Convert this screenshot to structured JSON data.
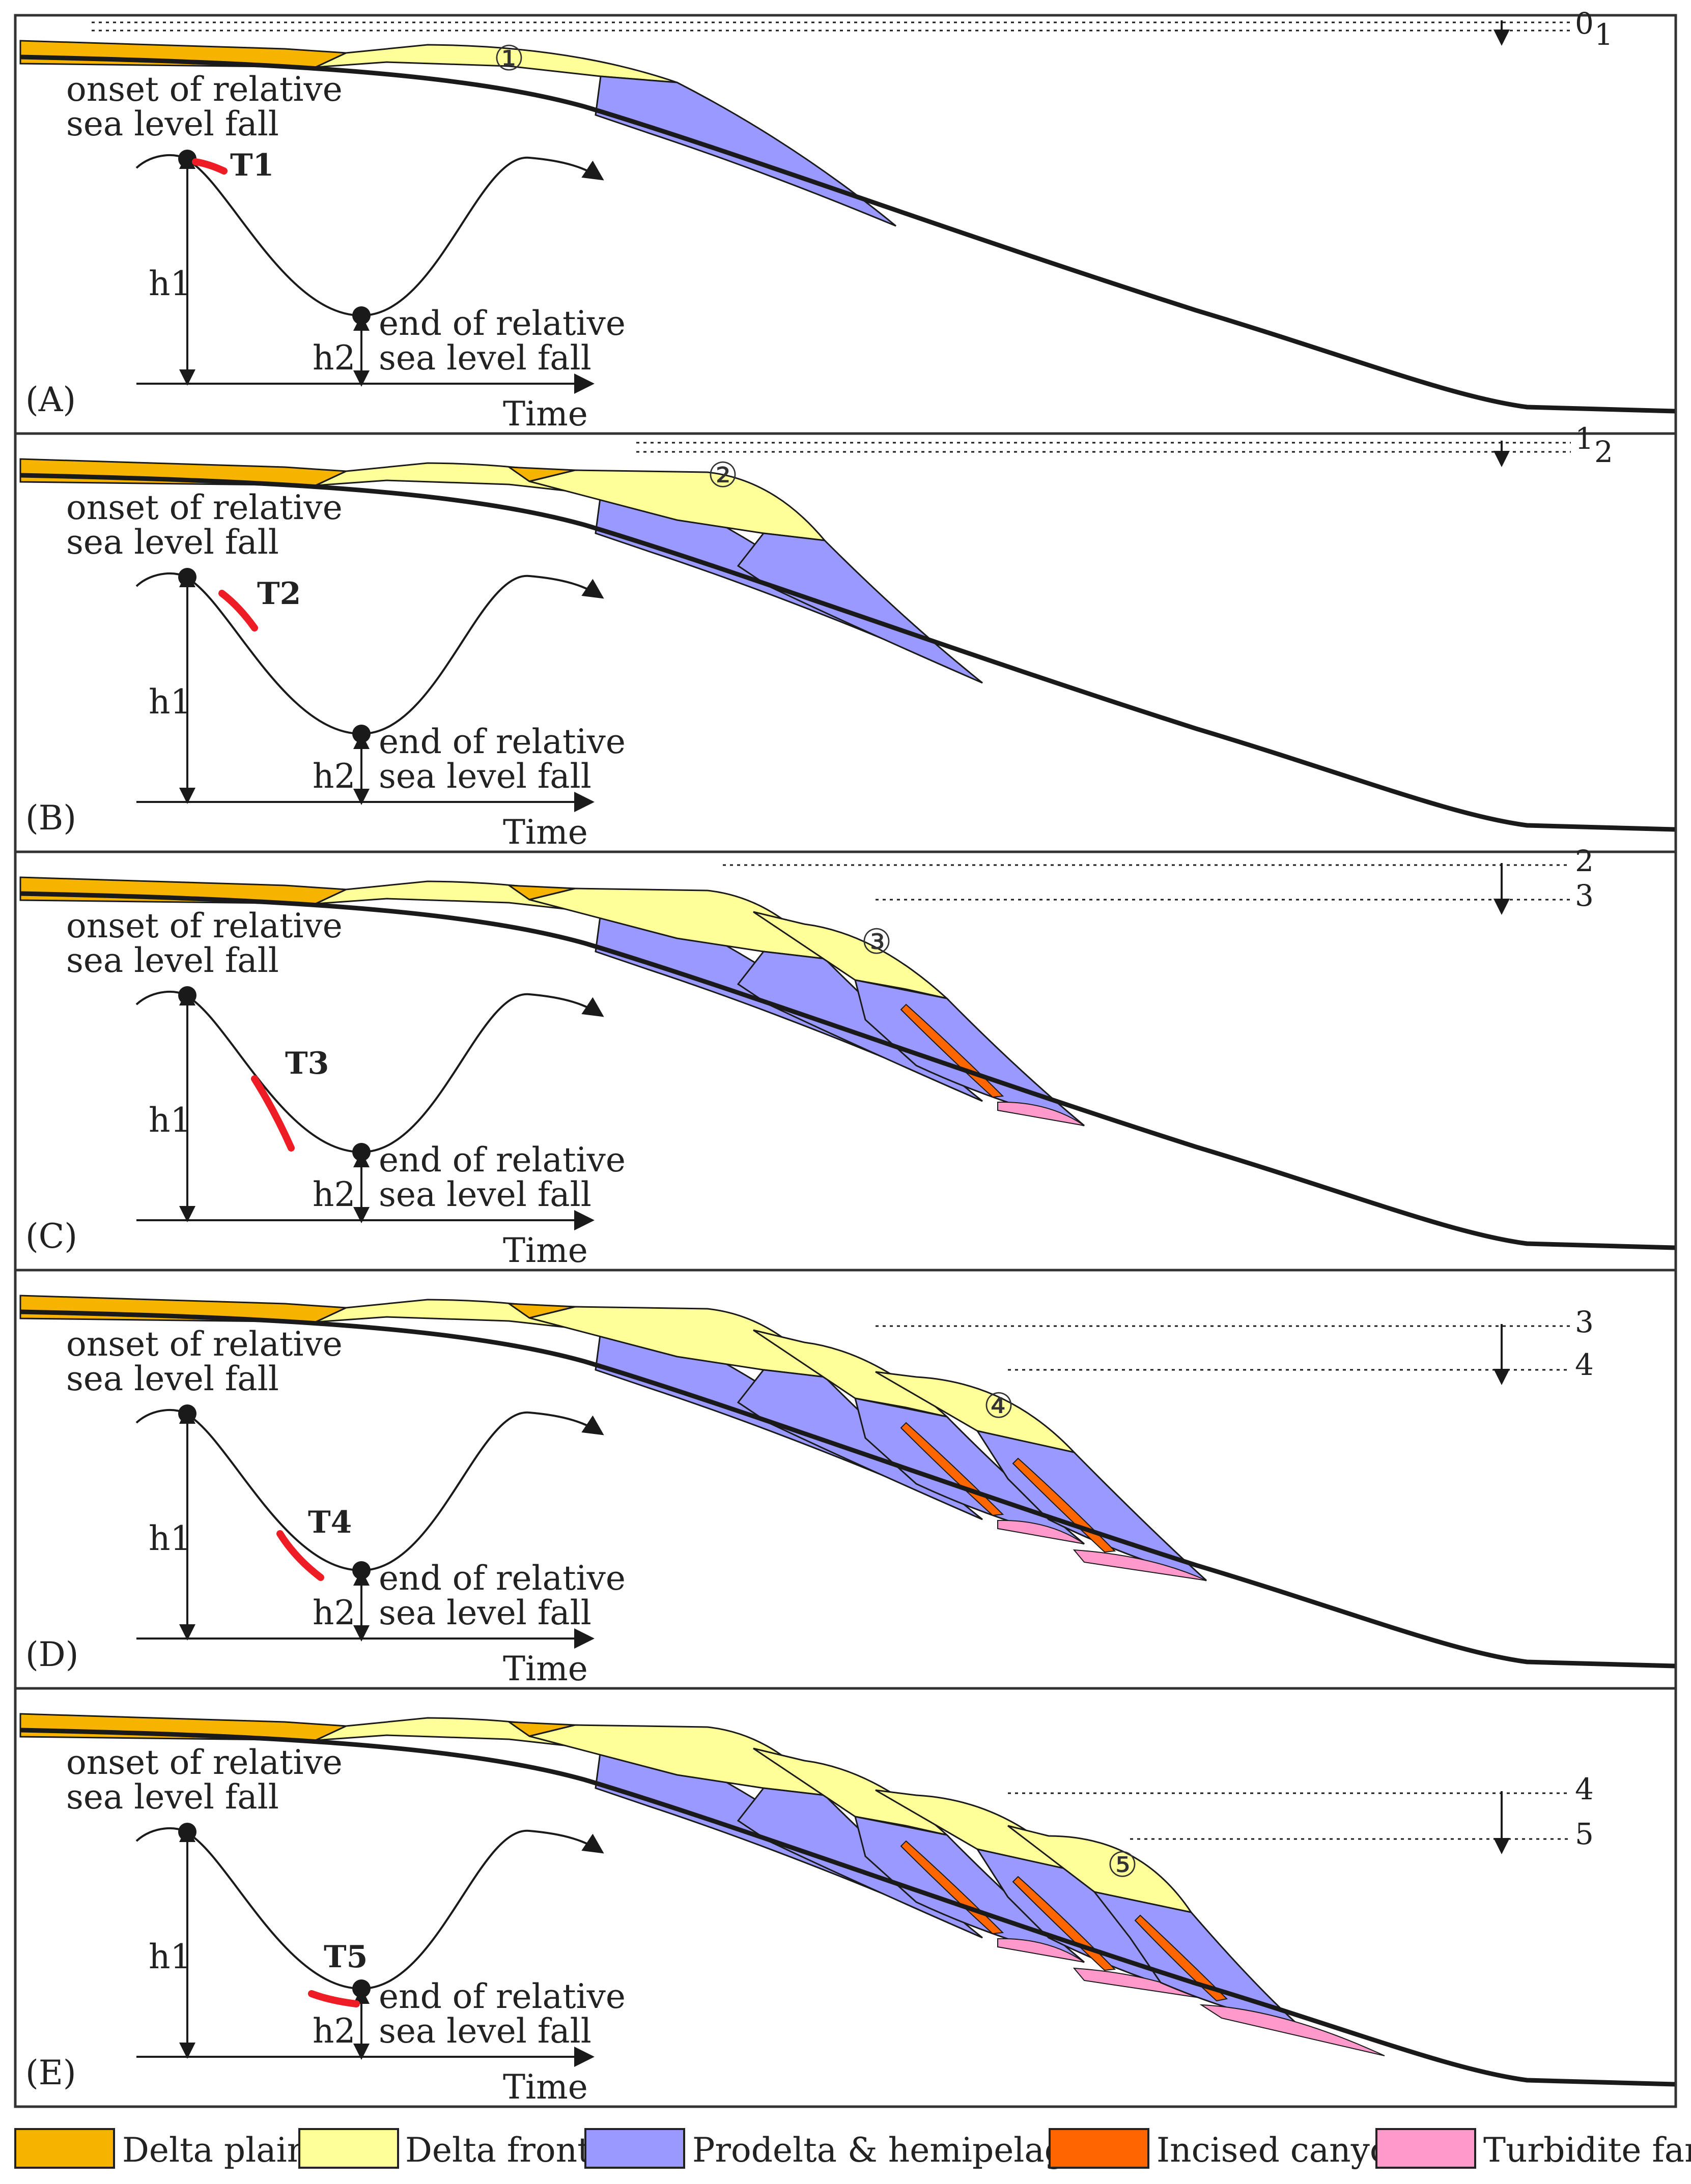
{
  "colors": {
    "delta_plain": "#f6b400",
    "delta_front": "#ffff99",
    "prodelta": "#9999ff",
    "canyon": "#ff6600",
    "turbidite": "#ff99cc",
    "marker": "#ee1c25",
    "line": "#1a1a1a"
  },
  "panels": [
    {
      "label": "(A)",
      "marker": "T1",
      "unit_number": "①",
      "sea_levels": [
        "0",
        "1"
      ]
    },
    {
      "label": "(B)",
      "marker": "T2",
      "unit_number": "②",
      "sea_levels": [
        "1",
        "2"
      ]
    },
    {
      "label": "(C)",
      "marker": "T3",
      "unit_number": "③",
      "sea_levels": [
        "2",
        "3"
      ]
    },
    {
      "label": "(D)",
      "marker": "T4",
      "unit_number": "④",
      "sea_levels": [
        "3",
        "4"
      ]
    },
    {
      "label": "(E)",
      "marker": "T5",
      "unit_number": "⑤",
      "sea_levels": [
        "4",
        "5"
      ]
    }
  ],
  "curve_labels": {
    "onset_line1": "onset of relative",
    "onset_line2": "sea level fall",
    "end_line1": "end of relative",
    "end_line2": "sea level fall",
    "h1": "h1",
    "h2": "h2",
    "time": "Time"
  },
  "legend": [
    {
      "label": "Delta plain",
      "color": "#f6b400",
      "icon": "delta-plain-swatch"
    },
    {
      "label": "Delta front",
      "color": "#ffff99",
      "icon": "delta-front-swatch"
    },
    {
      "label": "Prodelta & hemipelagic",
      "color": "#9999ff",
      "icon": "prodelta-swatch"
    },
    {
      "label": "Incised canyon",
      "color": "#ff6600",
      "icon": "canyon-swatch"
    },
    {
      "label": "Turbidite fan",
      "color": "#ff99cc",
      "icon": "turbidite-swatch"
    }
  ]
}
